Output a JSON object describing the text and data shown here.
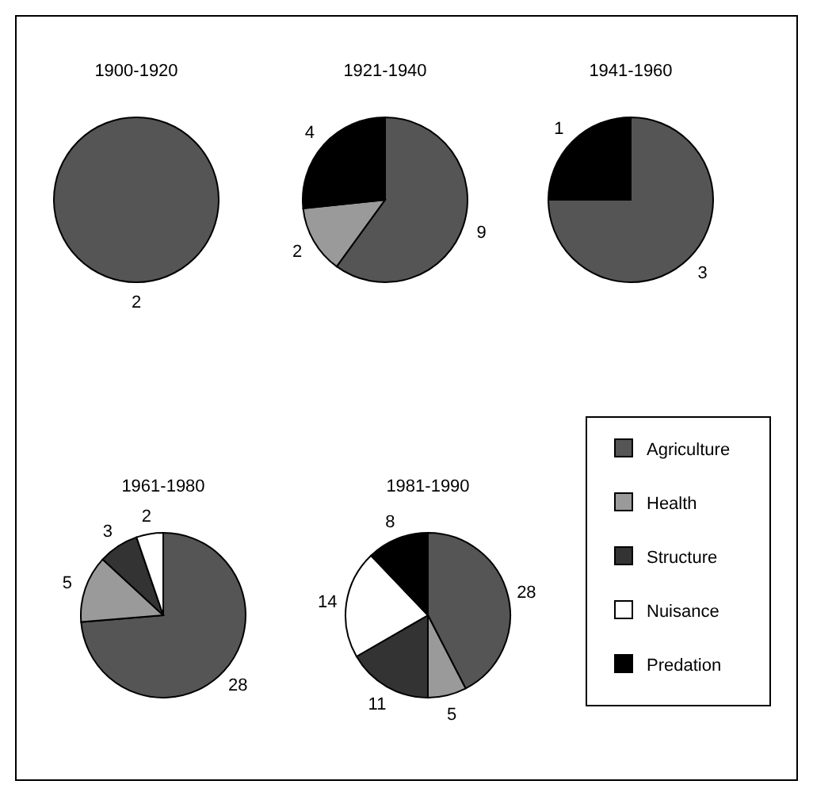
{
  "chart_data": [
    {
      "type": "pie",
      "title": "1900-1920",
      "categories": [
        null
      ],
      "values": [
        2
      ],
      "colors": [
        "#555555"
      ],
      "data_labels": true
    },
    {
      "type": "pie",
      "title": "1921-1940",
      "categories": [
        null,
        null,
        null
      ],
      "values": [
        9,
        2,
        4
      ],
      "colors": [
        "#555555",
        "#9a9a9a",
        "#000000"
      ],
      "data_labels": true
    },
    {
      "type": "pie",
      "title": "1941-1960",
      "categories": [
        null,
        null
      ],
      "values": [
        3,
        1
      ],
      "colors": [
        "#555555",
        "#000000"
      ],
      "data_labels": true
    },
    {
      "type": "pie",
      "title": "1961-1980",
      "categories": [
        null,
        null,
        null,
        null
      ],
      "values": [
        28,
        5,
        3,
        2
      ],
      "colors": [
        "#555555",
        "#9a9a9a",
        "#333333",
        "#ffffff"
      ],
      "data_labels": true
    },
    {
      "type": "pie",
      "title": "1981-1990",
      "categories": [
        "Agriculture",
        "Health",
        "Structure",
        "Nuisance",
        "Predation"
      ],
      "values": [
        28,
        5,
        11,
        14,
        8
      ],
      "colors": [
        "#555555",
        "#9a9a9a",
        "#333333",
        "#ffffff",
        "#000000"
      ],
      "data_labels": true,
      "legend": "right"
    }
  ]
}
